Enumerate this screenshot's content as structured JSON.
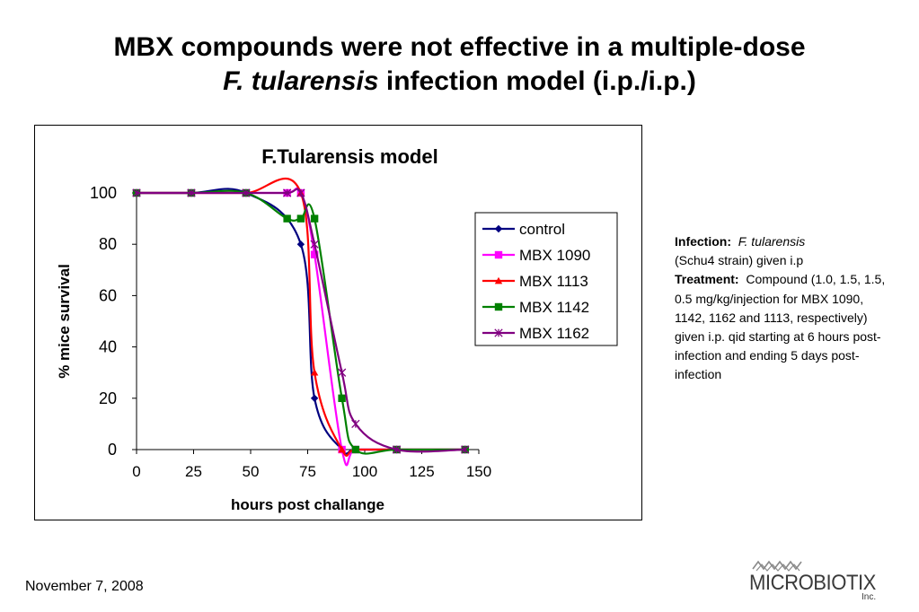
{
  "slide": {
    "title_line1": "MBX compounds were not effective in a multiple-dose",
    "title_line2_italic": "F. tularensis",
    "title_line2_rest": " infection model (i.p./i.p.)",
    "date": "November 7, 2008",
    "logo_text": "MICROBIOTIX",
    "logo_suffix": "Inc."
  },
  "notes": {
    "infection_label": "Infection:",
    "infection_organism": "F. tularensis",
    "infection_detail": "(Schu4 strain) given i.p",
    "treatment_label": "Treatment:",
    "treatment_text": "Compound (1.0, 1.5, 1.5, 0.5 mg/kg/injection for MBX 1090, 1142, 1162 and 1113, respectively) given i.p. qid starting at 6 hours post-infection and ending 5 days post-infection"
  },
  "chart_data": {
    "type": "line",
    "title": "F.Tularensis model",
    "xlabel": "hours post challange",
    "ylabel": "% mice survival",
    "xlim": [
      0,
      150
    ],
    "ylim": [
      0,
      100
    ],
    "xticks": [
      0,
      25,
      50,
      75,
      100,
      125,
      150
    ],
    "yticks": [
      0,
      20,
      40,
      60,
      80,
      100
    ],
    "grid": false,
    "legend_position": "right",
    "series": [
      {
        "name": "control",
        "color": "#000080",
        "marker": "diamond",
        "x": [
          0,
          24,
          48,
          72,
          78,
          90,
          96,
          114,
          144
        ],
        "y": [
          100,
          100,
          100,
          80,
          20,
          0,
          0,
          0,
          0
        ]
      },
      {
        "name": "MBX 1090",
        "color": "#ff00ff",
        "marker": "square",
        "x": [
          0,
          24,
          48,
          66,
          72,
          78,
          90,
          96,
          114,
          144
        ],
        "y": [
          100,
          100,
          100,
          100,
          100,
          76,
          0,
          0,
          0,
          0
        ]
      },
      {
        "name": "MBX 1113",
        "color": "#ff0000",
        "marker": "triangle",
        "x": [
          0,
          24,
          48,
          72,
          78,
          90,
          96,
          114,
          144
        ],
        "y": [
          100,
          100,
          100,
          100,
          30,
          0,
          0,
          0,
          0
        ]
      },
      {
        "name": "MBX 1142",
        "color": "#008000",
        "marker": "square",
        "x": [
          0,
          24,
          48,
          66,
          72,
          78,
          90,
          96,
          114,
          144
        ],
        "y": [
          100,
          100,
          100,
          90,
          90,
          90,
          20,
          0,
          0,
          0
        ]
      },
      {
        "name": "MBX 1162",
        "color": "#800080",
        "marker": "x",
        "x": [
          0,
          24,
          48,
          66,
          72,
          78,
          90,
          96,
          114,
          144
        ],
        "y": [
          100,
          100,
          100,
          100,
          100,
          80,
          30,
          10,
          0,
          0
        ]
      }
    ]
  }
}
